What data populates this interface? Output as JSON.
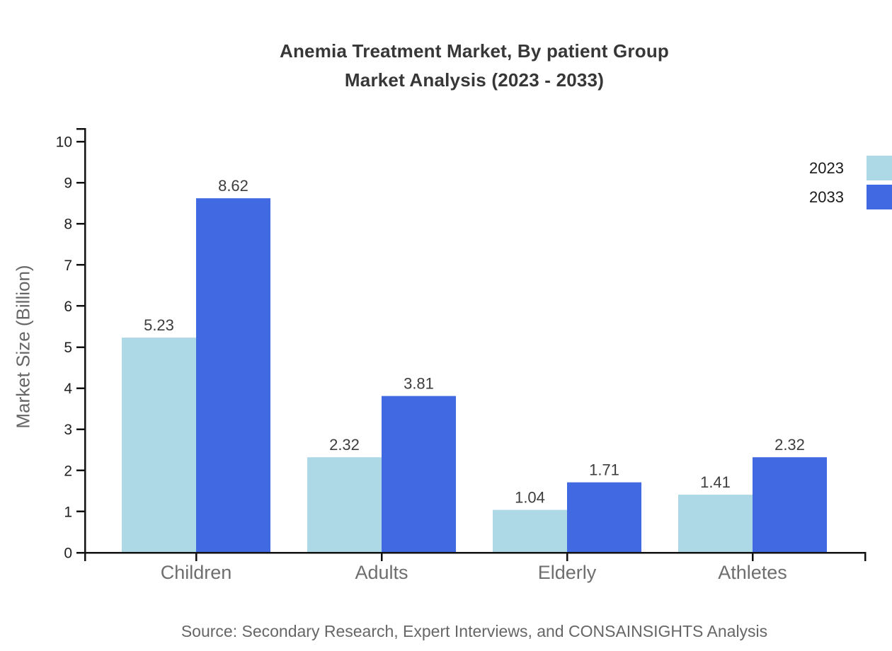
{
  "title": {
    "line1": "Anemia Treatment Market, By patient Group",
    "line2": "Market Analysis (2023 - 2033)"
  },
  "source": "Source: Secondary Research, Expert Interviews, and CONSAINSIGHTS Analysis",
  "chart_data": {
    "type": "bar",
    "title": "Anemia Treatment Market, By patient Group Market Analysis (2023 - 2033)",
    "categories": [
      "Children",
      "Adults",
      "Elderly",
      "Athletes"
    ],
    "series": [
      {
        "name": "2023",
        "color": "#ADD8E6",
        "values": [
          5.23,
          2.32,
          1.04,
          1.41
        ]
      },
      {
        "name": "2033",
        "color": "#4169E1",
        "values": [
          8.62,
          3.81,
          1.71,
          2.32
        ]
      }
    ],
    "xlabel": "",
    "ylabel": "Market Size (Billion)",
    "ylim": [
      0,
      10
    ],
    "yticks": [
      0,
      1,
      2,
      3,
      4,
      5,
      6,
      7,
      8,
      9,
      10
    ],
    "grid": false,
    "legend_position": "top-right",
    "value_labels": true
  },
  "colors": {
    "axis": "#111111",
    "tick_label": "#1f1f1f",
    "category_label": "#6e6e6e",
    "value_label": "#3d3d3d",
    "title_text": "#373737",
    "muted_text": "#666666"
  }
}
